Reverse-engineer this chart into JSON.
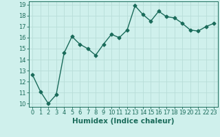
{
  "x": [
    0,
    1,
    2,
    3,
    4,
    5,
    6,
    7,
    8,
    9,
    10,
    11,
    12,
    13,
    14,
    15,
    16,
    17,
    18,
    19,
    20,
    21,
    22,
    23
  ],
  "y": [
    12.6,
    11.1,
    10.0,
    10.8,
    14.6,
    16.1,
    15.4,
    15.0,
    14.4,
    15.4,
    16.3,
    16.0,
    16.7,
    18.9,
    18.1,
    17.5,
    18.4,
    17.9,
    17.8,
    17.3,
    16.7,
    16.6,
    17.0,
    17.3
  ],
  "line_color": "#1a6b5a",
  "bg_color": "#cff0ec",
  "grid_color": "#b8ddd8",
  "xlabel": "Humidex (Indice chaleur)",
  "ylim": [
    10,
    19
  ],
  "xlim": [
    -0.5,
    23.5
  ],
  "yticks": [
    10,
    11,
    12,
    13,
    14,
    15,
    16,
    17,
    18,
    19
  ],
  "xticks": [
    0,
    1,
    2,
    3,
    4,
    5,
    6,
    7,
    8,
    9,
    10,
    11,
    12,
    13,
    14,
    15,
    16,
    17,
    18,
    19,
    20,
    21,
    22,
    23
  ],
  "marker": "D",
  "marker_size": 2.5,
  "line_width": 1.0,
  "tick_label_fontsize": 6.0,
  "xlabel_fontsize": 7.5
}
